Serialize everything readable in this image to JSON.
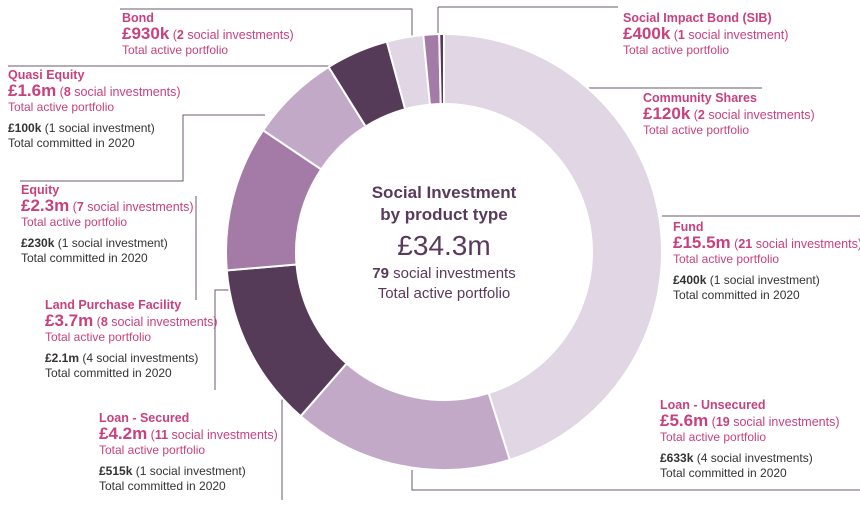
{
  "chart_data": {
    "type": "donut",
    "title": [
      "Social Investment",
      "by product type"
    ],
    "total": "£34.3m",
    "count": "79",
    "count_suffix": " social investments",
    "subtitle": "Total active portfolio",
    "slices": [
      {
        "key": "fund",
        "name": "Fund",
        "value": 15.5,
        "value_label": "£15.5m",
        "count": "21",
        "count_suffix": " social investments",
        "sub": "Total active portfolio",
        "committed": "£400k",
        "committed_count": " (1 social investment)",
        "committed_sub": "Total committed in 2020",
        "color": "#e0d6e4"
      },
      {
        "key": "loan-unsecured",
        "name": "Loan - Unsecured",
        "value": 5.6,
        "value_label": "£5.6m",
        "count": "19",
        "count_suffix": " social investments",
        "sub": "Total active portfolio",
        "committed": "£633k",
        "committed_count": " (4 social investments)",
        "committed_sub": "Total committed in 2020",
        "color": "#c3a9c8"
      },
      {
        "key": "loan-secured",
        "name": "Loan - Secured",
        "value": 4.2,
        "value_label": "£4.2m",
        "count": "11",
        "count_suffix": " social investments",
        "sub": "Total active portfolio",
        "committed": "£515k",
        "committed_count": " (1 social investment)",
        "committed_sub": "Total committed in 2020",
        "color": "#563b59"
      },
      {
        "key": "land-purchase",
        "name": "Land Purchase Facility",
        "value": 3.7,
        "value_label": "£3.7m",
        "count": "8",
        "count_suffix": " social investments",
        "sub": "Total active portfolio",
        "committed": "£2.1m",
        "committed_count": " (4 social investments)",
        "committed_sub": "Total committed in 2020",
        "color": "#a47aa6"
      },
      {
        "key": "equity",
        "name": "Equity",
        "value": 2.3,
        "value_label": "£2.3m",
        "count": "7",
        "count_suffix": " social investments",
        "sub": "Total active portfolio",
        "committed": "£230k",
        "committed_count": " (1 social investment)",
        "committed_sub": "Total committed in 2020",
        "color": "#c3a9c8"
      },
      {
        "key": "quasi-equity",
        "name": "Quasi Equity",
        "value": 1.6,
        "value_label": "£1.6m",
        "count": "8",
        "count_suffix": " social investments",
        "sub": "Total active portfolio",
        "committed": "£100k",
        "committed_count": " (1 social investment)",
        "committed_sub": "Total committed in 2020",
        "color": "#563b59"
      },
      {
        "key": "bond",
        "name": "Bond",
        "value": 0.93,
        "value_label": "£930k",
        "count": "2",
        "count_suffix": " social investments",
        "sub": "Total active portfolio",
        "color": "#e0d6e4"
      },
      {
        "key": "sib",
        "name": "Social Impact Bond (SIB)",
        "value": 0.4,
        "value_label": "£400k",
        "count": "1",
        "count_suffix": " social investment",
        "sub": "Total active portfolio",
        "color": "#a47aa6"
      },
      {
        "key": "community-shares",
        "name": "Community Shares",
        "value": 0.12,
        "value_label": "£120k",
        "count": "2",
        "count_suffix": " social investments",
        "sub": "Total active portfolio",
        "color": "#563b59"
      }
    ]
  }
}
